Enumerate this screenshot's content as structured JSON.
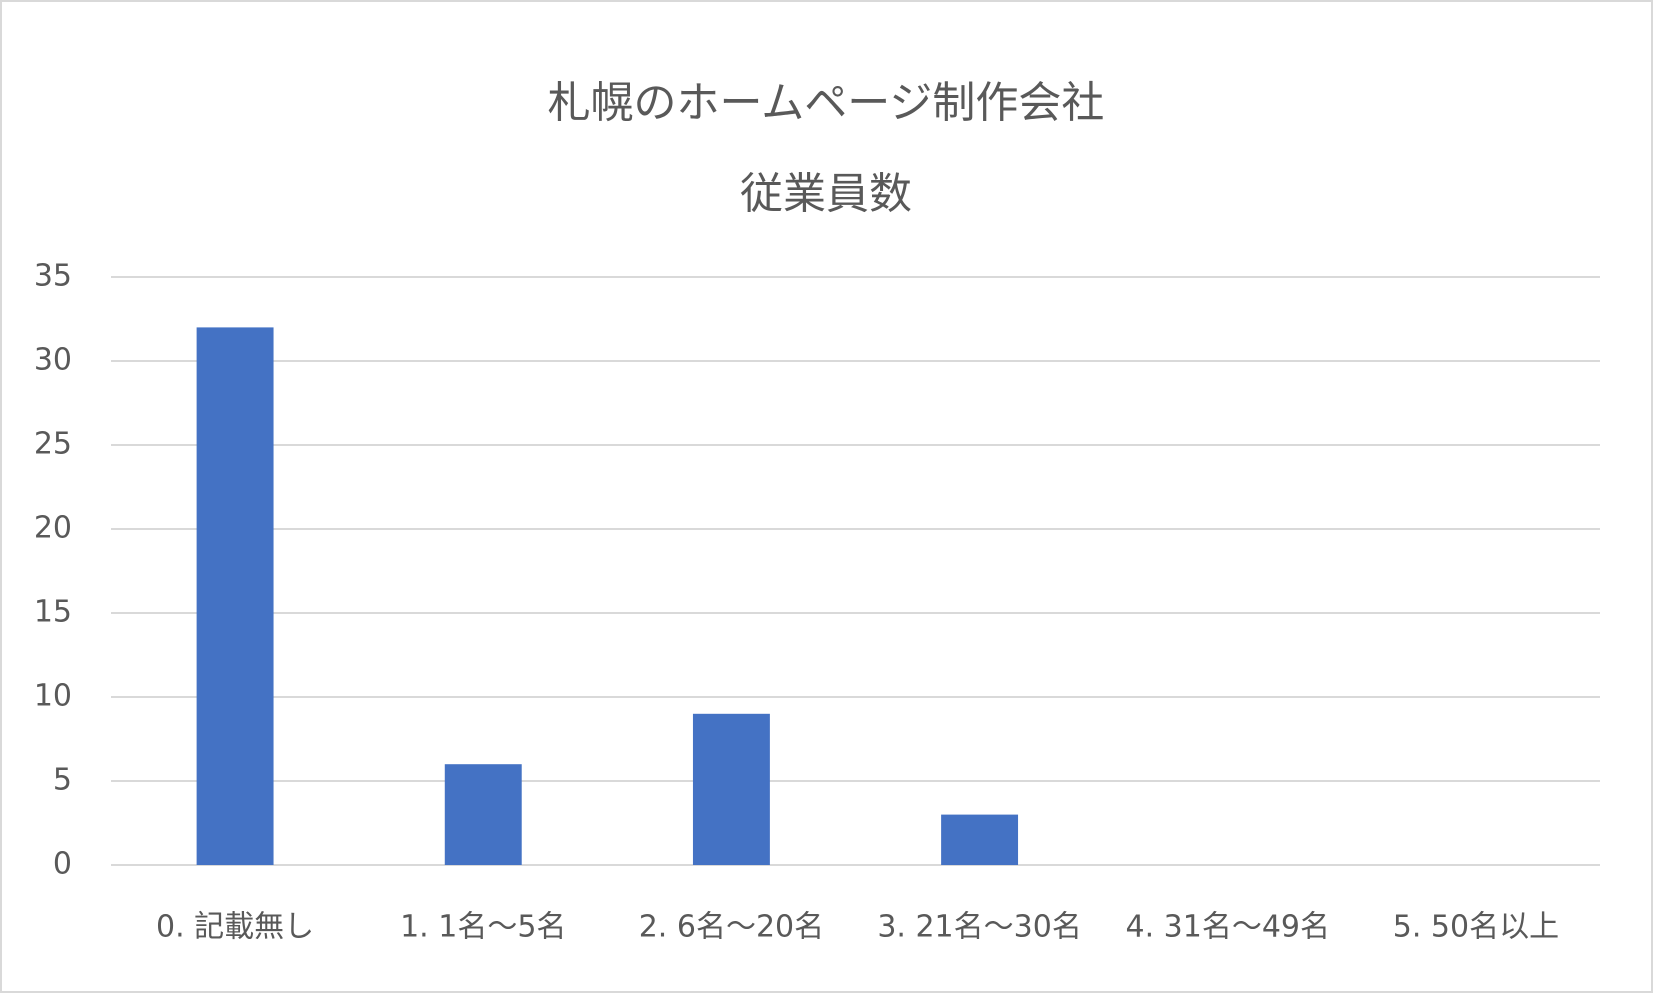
{
  "chart_data": {
    "type": "bar",
    "title": "札幌のホームページ制作会社",
    "subtitle": "従業員数",
    "categories": [
      "0. 記載無し",
      "1. 1名～5名",
      "2. 6名～20名",
      "3. 21名～30名",
      "4. 31名～49名",
      "5. 50名以上"
    ],
    "values": [
      32,
      6,
      9,
      3,
      0,
      0
    ],
    "color": "#4472c4",
    "ylim": [
      0,
      35
    ],
    "yticks": [
      0,
      5,
      10,
      15,
      20,
      25,
      30,
      35
    ],
    "grid": true
  }
}
